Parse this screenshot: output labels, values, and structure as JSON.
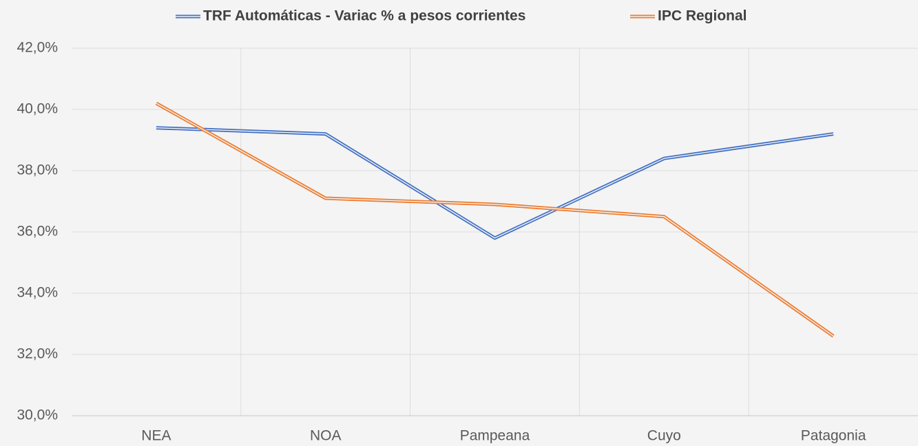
{
  "chart_data": {
    "type": "line",
    "categories": [
      "NEA",
      "NOA",
      "Pampeana",
      "Cuyo",
      "Patagonia"
    ],
    "series": [
      {
        "name": "TRF Automáticas - Variac % a pesos corrientes",
        "color": "#4472c4",
        "values": [
          39.4,
          39.2,
          35.8,
          38.4,
          39.2
        ]
      },
      {
        "name": "IPC Regional",
        "color": "#ed7d31",
        "values": [
          40.2,
          37.1,
          36.9,
          36.5,
          32.6
        ]
      }
    ],
    "ylim": [
      30,
      42
    ],
    "yticks": [
      {
        "value": 30,
        "label": "30,0%"
      },
      {
        "value": 32,
        "label": "32,0%"
      },
      {
        "value": 34,
        "label": "34,0%"
      },
      {
        "value": 36,
        "label": "36,0%"
      },
      {
        "value": 38,
        "label": "38,0%"
      },
      {
        "value": 40,
        "label": "40,0%"
      },
      {
        "value": 42,
        "label": "42,0%"
      }
    ],
    "grid": true,
    "legend": "top"
  }
}
